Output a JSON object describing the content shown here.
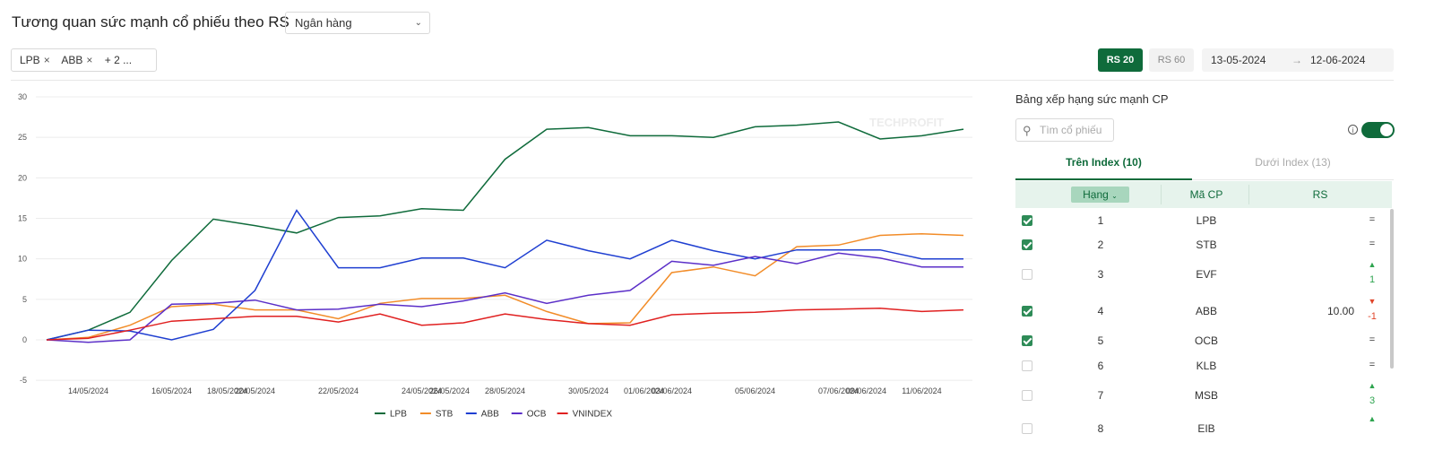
{
  "header": {
    "title": "Tương quan sức mạnh cổ phiếu theo RS",
    "industry_select": "Ngân hàng",
    "tags": [
      "LPB",
      "ABB"
    ],
    "tags_more": "+ 2 ...",
    "rs20_label": "RS 20",
    "rs60_label": "RS 60",
    "date_from": "13-05-2024",
    "date_to": "12-06-2024",
    "arrow": "→"
  },
  "watermark": "TECHPROFIT",
  "colors": {
    "accent": "#0f6b3b",
    "LPB": "#0f6b3b",
    "STB": "#f28c28",
    "ABB": "#1f3fd1",
    "OCB": "#5b2fc8",
    "VNINDEX": "#e02020"
  },
  "chart_data": {
    "type": "line",
    "x": [
      "13/05/2024",
      "14/05/2024",
      "15/05/2024",
      "16/05/2024",
      "17/05/2024",
      "20/05/2024",
      "21/05/2024",
      "22/05/2024",
      "23/05/2024",
      "24/05/2024",
      "27/05/2024",
      "28/05/2024",
      "29/05/2024",
      "30/05/2024",
      "31/05/2024",
      "03/06/2024",
      "04/06/2024",
      "05/06/2024",
      "06/06/2024",
      "07/06/2024",
      "10/06/2024",
      "11/06/2024",
      "12/06/2024"
    ],
    "xticks": [
      "14/05/2024",
      "16/05/2024",
      "18/05/2024",
      "20/05/2024",
      "22/05/2024",
      "24/05/2024",
      "26/05/2024",
      "28/05/2024",
      "30/05/2024",
      "01/06/2024",
      "03/06/2024",
      "05/06/2024",
      "07/06/2024",
      "09/06/2024",
      "11/06/2024"
    ],
    "yticks": [
      30,
      25,
      20,
      15,
      10,
      5,
      0,
      -5
    ],
    "ylim": [
      -5,
      30
    ],
    "series": [
      {
        "name": "LPB",
        "color": "#0f6b3b",
        "values": [
          0,
          1.2,
          3.4,
          9.8,
          14.9,
          14.1,
          13.2,
          15.1,
          15.3,
          16.2,
          16.0,
          22.3,
          26.0,
          26.2,
          25.2,
          25.2,
          25.0,
          26.3,
          26.5,
          26.9,
          24.8,
          25.2,
          26.0
        ]
      },
      {
        "name": "STB",
        "color": "#f28c28",
        "values": [
          0,
          0.3,
          1.8,
          4.1,
          4.4,
          3.7,
          3.7,
          2.6,
          4.5,
          5.1,
          5.1,
          5.5,
          3.5,
          2.0,
          2.1,
          8.3,
          9.0,
          7.9,
          11.5,
          11.7,
          12.9,
          13.1,
          12.9
        ]
      },
      {
        "name": "ABB",
        "color": "#1f3fd1",
        "values": [
          0,
          1.2,
          1.1,
          0,
          1.3,
          6.1,
          16.0,
          8.9,
          8.9,
          10.1,
          10.1,
          8.9,
          12.3,
          11.0,
          10.0,
          12.3,
          11.0,
          10.0,
          11.1,
          11.1,
          11.1,
          10.0,
          10.0
        ]
      },
      {
        "name": "OCB",
        "color": "#5b2fc8",
        "values": [
          0,
          -0.3,
          0,
          4.4,
          4.5,
          4.9,
          3.7,
          3.8,
          4.4,
          4.1,
          4.8,
          5.8,
          4.5,
          5.5,
          6.1,
          9.7,
          9.2,
          10.3,
          9.4,
          10.7,
          10.1,
          9.0,
          9.0
        ]
      },
      {
        "name": "VNINDEX",
        "color": "#e02020",
        "values": [
          0,
          0.2,
          1.2,
          2.3,
          2.6,
          2.9,
          2.9,
          2.2,
          3.2,
          1.8,
          2.1,
          3.2,
          2.5,
          2.0,
          1.8,
          3.1,
          3.3,
          3.4,
          3.7,
          3.8,
          3.9,
          3.5,
          3.7
        ]
      }
    ]
  },
  "ranking": {
    "title": "Bảng xếp hạng sức mạnh CP",
    "search_placeholder": "Tìm cổ phiếu",
    "info_icon": "i",
    "tab_above": "Trên Index (10)",
    "tab_below": "Dưới Index (13)",
    "col_rank": "Hạng",
    "col_code": "Mã CP",
    "col_rs": "RS",
    "rows": [
      {
        "rank": "1",
        "code": "LPB",
        "rs": "",
        "change": "=",
        "dir": "same",
        "checked": true
      },
      {
        "rank": "2",
        "code": "STB",
        "rs": "",
        "change": "=",
        "dir": "same",
        "checked": true
      },
      {
        "rank": "3",
        "code": "EVF",
        "rs": "",
        "change": "1",
        "dir": "up",
        "checked": false
      },
      {
        "rank": "4",
        "code": "ABB",
        "rs": "10.00",
        "change": "-1",
        "dir": "down",
        "checked": true
      },
      {
        "rank": "5",
        "code": "OCB",
        "rs": "",
        "change": "=",
        "dir": "same",
        "checked": true
      },
      {
        "rank": "6",
        "code": "KLB",
        "rs": "",
        "change": "=",
        "dir": "same",
        "checked": false
      },
      {
        "rank": "7",
        "code": "MSB",
        "rs": "",
        "change": "3",
        "dir": "up",
        "checked": false
      },
      {
        "rank": "8",
        "code": "EIB",
        "rs": "",
        "change": "",
        "dir": "up",
        "checked": false
      }
    ]
  }
}
